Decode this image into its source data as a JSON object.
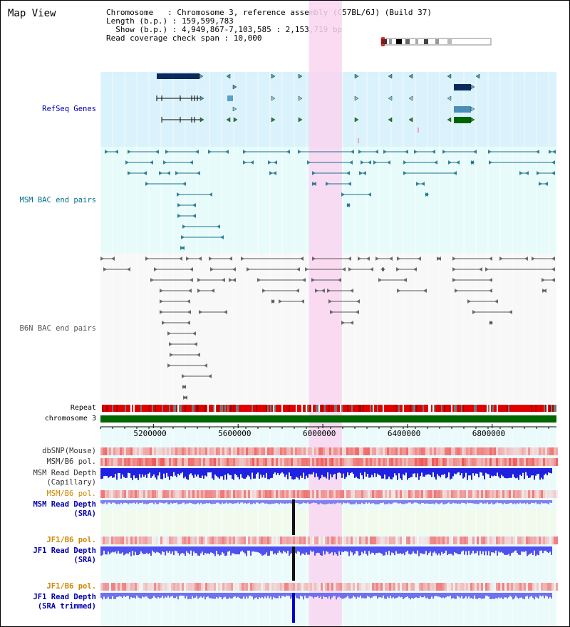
{
  "title": "Map View",
  "header": {
    "chromosome_line": "Chromosome   : Chromosome 3, reference assembly (C57BL/6J) (Build 37)",
    "length_line": "Length (b.p.) : 159,599,783",
    "show_line": "  Show (b.p.) : 4,949,867-7,103,585 : 2,153,719 bp",
    "coverage_line": "Read coverage check span : 10,000"
  },
  "tracks": {
    "refseq": {
      "label": "RefSeq Genes",
      "color": "#0000aa"
    },
    "msm_bac": {
      "label": "MSM BAC end pairs",
      "color": "#006e8e"
    },
    "b6n_bac": {
      "label": "B6N BAC end pairs",
      "color": "#555555"
    },
    "repeat": {
      "label": "Repeat"
    },
    "chromosome": {
      "label": "chromosome 3",
      "color": "#006600"
    },
    "dbsnp": {
      "label": "dbSNP(Mouse)"
    },
    "msm_b6_pol_1": {
      "label": "MSM/B6 pol."
    },
    "msm_read_depth_cap": {
      "label_1": "MSM Read Depth",
      "label_2": "(Capillary)"
    },
    "msm_b6_pol_2": {
      "label": "MSM/B6 pol.",
      "color": "#cc8800"
    },
    "msm_read_depth_sra": {
      "label_1": "MSM Read Depth",
      "label_2": "(SRA)",
      "color": "#0000aa"
    },
    "jf1_b6_pol_1": {
      "label": "JF1/B6 pol.",
      "color": "#cc8800"
    },
    "jf1_read_depth_sra": {
      "label_1": "JF1 Read Depth",
      "label_2": "(SRA)",
      "color": "#0000aa"
    },
    "jf1_b6_pol_2": {
      "label": "JF1/B6 pol.",
      "color": "#cc8800"
    },
    "jf1_read_depth_trim": {
      "label_1": "JF1 Read Depth",
      "label_2": "(SRA trimmed)",
      "color": "#0000aa"
    }
  },
  "axis": {
    "ticks": [
      "5200000",
      "5600000",
      "6000000",
      "6400000",
      "6800000"
    ],
    "range": [
      4949867,
      7103585
    ]
  },
  "highlight": {
    "start": 5935000,
    "end": 6090000,
    "color": "#f9d5f0"
  },
  "colors": {
    "refseq_bg": "#daf2fb",
    "msm_bg": "#e8fbfb",
    "b6n_bg": "#f8f8f8",
    "depth_bg": "#ebfbfb",
    "green_bg": "#f1fbed",
    "msm_line": "#1a6f8c",
    "b6n_line": "#555555"
  }
}
